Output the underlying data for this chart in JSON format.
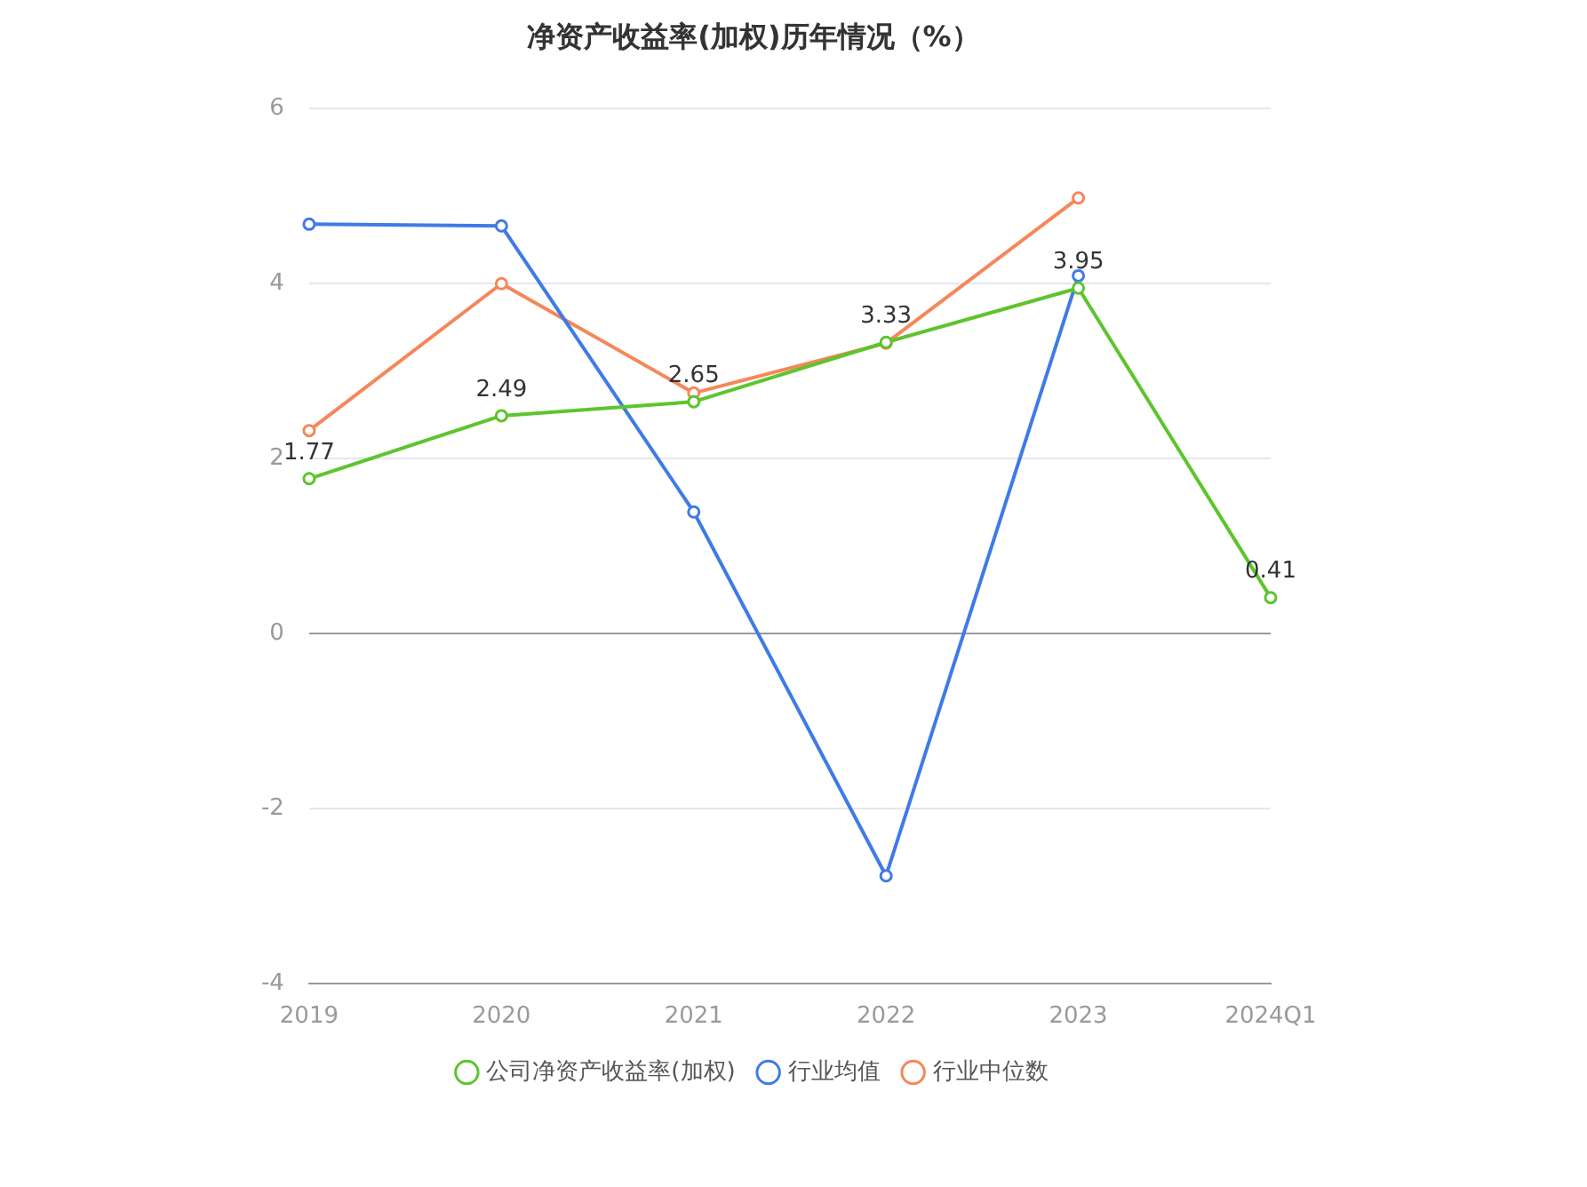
{
  "chart_data": {
    "type": "line",
    "title": "净资产收益率(加权)历年情况（%）",
    "categories": [
      "2019",
      "2020",
      "2021",
      "2022",
      "2023",
      "2024Q1"
    ],
    "series": [
      {
        "name": "公司净资产收益率(加权)",
        "color": "#5cc52c",
        "values": [
          1.77,
          2.49,
          2.65,
          3.33,
          3.95,
          0.41
        ],
        "value_labels": [
          "1.77",
          "2.49",
          "2.65",
          "3.33",
          "3.95",
          "0.41"
        ]
      },
      {
        "name": "行业均值",
        "color": "#3f7be6",
        "values": [
          4.68,
          4.66,
          1.39,
          -2.77,
          4.09,
          null
        ]
      },
      {
        "name": "行业中位数",
        "color": "#f5875a",
        "values": [
          2.32,
          4.0,
          2.75,
          3.32,
          4.98,
          null
        ]
      }
    ],
    "ylim": [
      -4,
      6
    ],
    "yticks": [
      -4,
      -2,
      0,
      2,
      4,
      6
    ],
    "grid": "y",
    "legend": "bottom",
    "marker": "circle",
    "line_style": "solid"
  }
}
